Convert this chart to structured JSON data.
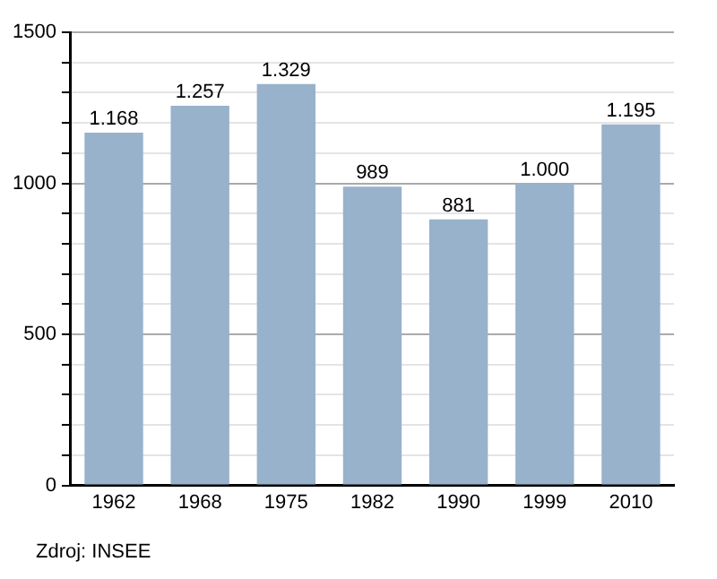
{
  "chart_data": {
    "type": "bar",
    "categories": [
      "1962",
      "1968",
      "1975",
      "1982",
      "1990",
      "1999",
      "2010"
    ],
    "values": [
      1168,
      1257,
      1329,
      989,
      881,
      1000,
      1195
    ],
    "value_labels": [
      "1.168",
      "1.257",
      "1.329",
      "989",
      "881",
      "1.000",
      "1.195"
    ],
    "color": "#98b2cb",
    "ylim": [
      0,
      1500
    ],
    "yticks": [
      0,
      {
        "value": 100,
        "label": null
      },
      {
        "value": 200,
        "label": null
      },
      {
        "value": 300,
        "label": null
      },
      {
        "value": 400,
        "label": null
      },
      500,
      {
        "value": 600,
        "label": null
      },
      {
        "value": 700,
        "label": null
      },
      {
        "value": 800,
        "label": null
      },
      {
        "value": 900,
        "label": null
      },
      1000,
      {
        "value": 1100,
        "label": null
      },
      {
        "value": 1200,
        "label": null
      },
      {
        "value": 1300,
        "label": null
      },
      {
        "value": 1400,
        "label": null
      },
      1500
    ],
    "grid": "y",
    "annotations": [
      "Zdroj: INSEE"
    ]
  }
}
